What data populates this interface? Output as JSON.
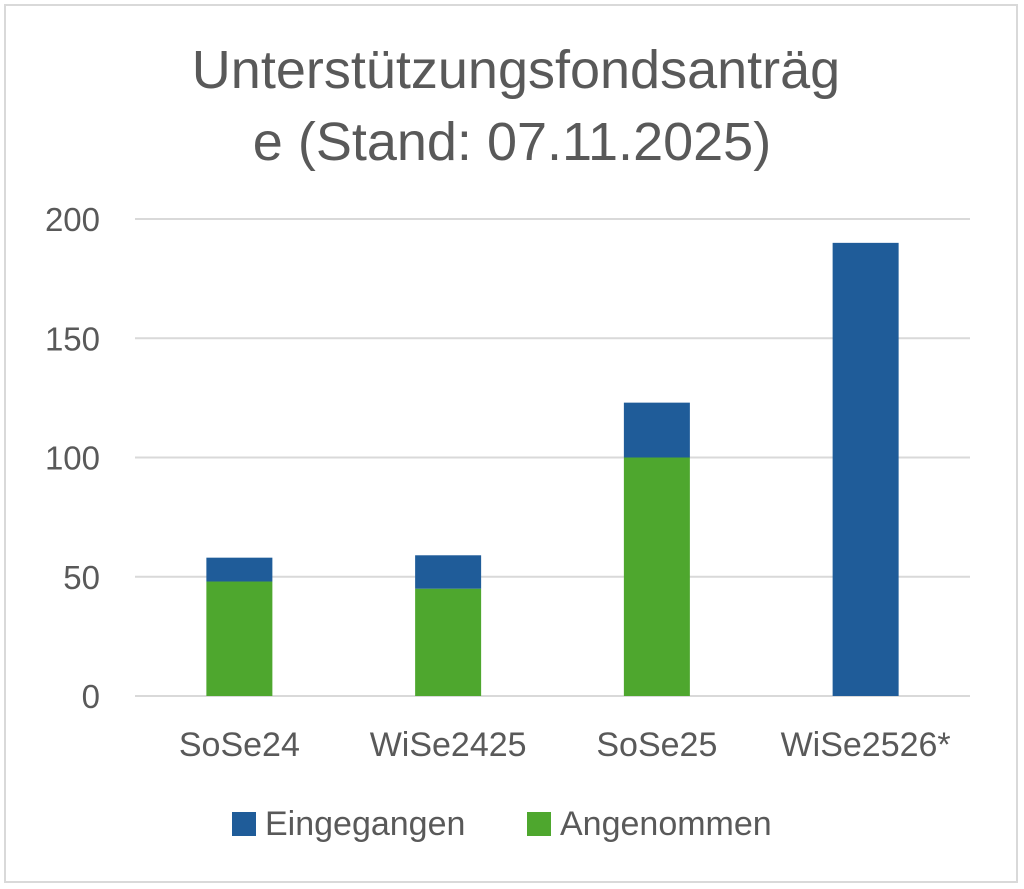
{
  "chart_data": {
    "type": "bar",
    "stacked": true,
    "title_line1": "Unterstützungsfondsanträg",
    "title_line2": "e (Stand: 07.11.2025)",
    "categories": [
      "SoSe24",
      "WiSe2425",
      "SoSe25",
      "WiSe2526*"
    ],
    "series": [
      {
        "name": "Angenommen",
        "color": "#4ea72e",
        "values": [
          48,
          45,
          100,
          0
        ]
      },
      {
        "name": "Eingegangen",
        "color": "#1f5c99",
        "values": [
          10,
          14,
          23,
          190
        ]
      }
    ],
    "legend_order": [
      "Eingegangen",
      "Angenommen"
    ],
    "yticks": [
      "0",
      "50",
      "100",
      "150",
      "200"
    ],
    "ylim": [
      0,
      200
    ],
    "grid": true,
    "legend_position": "bottom"
  }
}
